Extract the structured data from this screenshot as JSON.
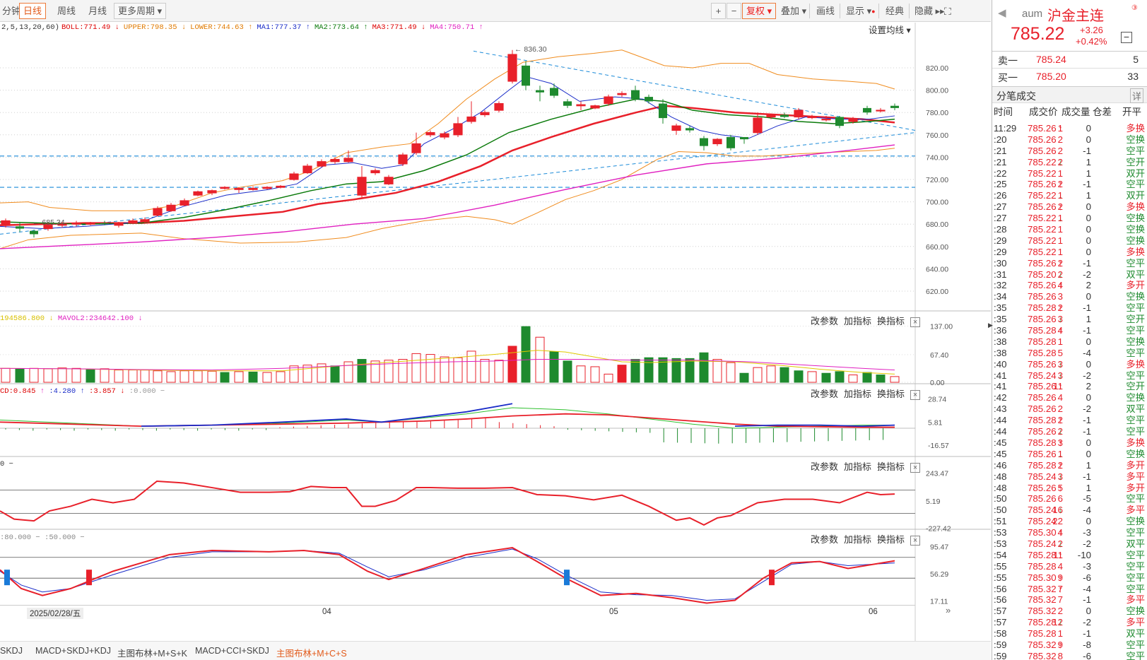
{
  "toolbar": {
    "items": [
      "分钟",
      "日线",
      "周线",
      "月线",
      "更多周期",
      "复权",
      "叠加",
      "画线",
      "显示",
      "经典",
      "隐藏"
    ],
    "plus": "+",
    "minus": "−"
  },
  "overlay": {
    "params": "2,5,13,20,60)",
    "indicators": [
      {
        "text": "BOLL:771.49",
        "arrow": "↓",
        "color": "#d00"
      },
      {
        "text": "UPPER:798.35",
        "arrow": "↓",
        "color": "#e07a00"
      },
      {
        "text": "LOWER:744.63",
        "arrow": "↑",
        "color": "#e07a00"
      },
      {
        "text": "MA1:777.37",
        "arrow": "↑",
        "color": "#1a2cc8"
      },
      {
        "text": "MA2:773.64",
        "arrow": "↑",
        "color": "#0a7a0a"
      },
      {
        "text": "MA3:771.49",
        "arrow": "↓",
        "color": "#d00"
      },
      {
        "text": "MA4:750.71",
        "arrow": "↑",
        "color": "#e020c0"
      }
    ],
    "settings": "设置均线",
    "peak_label": "836.30",
    "low_label": "685.34"
  },
  "main_axis": [
    "820.00",
    "800.00",
    "780.00",
    "760.00",
    "740.00",
    "720.00",
    "700.00",
    "680.00",
    "660.00",
    "640.00",
    "620.00"
  ],
  "vol": {
    "label1": "194586.800",
    "label2": "MAVOL2:234642.100",
    "axis": [
      "137.00",
      "67.40",
      "0.00"
    ]
  },
  "macd": {
    "l1": "CD:0.845",
    "l2": ":4.280",
    ":l3": "",
    "l3": ":3.857",
    "l4": ":0.000",
    "axis": [
      "28.74",
      "5.81",
      "-16.57"
    ]
  },
  "cci": {
    "l1": "0",
    "axis": [
      "243.47",
      "5.19",
      "-227.42"
    ]
  },
  "kdj": {
    "l1": ":80.000",
    ":l2": "",
    "l2": ":50.000",
    "axis": [
      "95.47",
      "56.29",
      "17.11"
    ]
  },
  "panel_buttons": [
    "改参数",
    "加指标",
    "换指标"
  ],
  "xaxis": {
    "dates": [
      "2025/02/28/五",
      "04",
      "05",
      "06"
    ]
  },
  "bottom_tabs": [
    "SKDJ",
    "MACD+SKDJ+KDJ",
    "主图布林+M+S+K",
    "MACD+CCI+SKDJ",
    "主图布林+M+C+S"
  ],
  "quote": {
    "code": "aum",
    "name": "沪金主连",
    "price": "785.22",
    "change": "+3.26",
    "pct": "+0.42%",
    "sell_label": "卖一",
    "sell_price": "785.24",
    "sell_vol": "5",
    "buy_label": "买一",
    "buy_price": "785.20",
    "buy_vol": "33",
    "trades_title": "分笔成交",
    "detail": "详",
    "headers": [
      "时间",
      "成交价",
      "成交量",
      "仓差",
      "开平"
    ]
  },
  "trades": [
    [
      "11:29",
      "785.26",
      "↑",
      "1",
      "0",
      "多换"
    ],
    [
      ":20",
      "785.26",
      "",
      "2",
      "0",
      "空换"
    ],
    [
      ":21",
      "785.26",
      "",
      "2",
      "-1",
      "空平"
    ],
    [
      ":21",
      "785.22",
      "↓",
      "2",
      "1",
      "空开"
    ],
    [
      ":22",
      "785.22",
      "",
      "1",
      "1",
      "双开"
    ],
    [
      ":25",
      "785.26",
      "↑",
      "2",
      "-1",
      "空平"
    ],
    [
      ":26",
      "785.22",
      "↓",
      "1",
      "1",
      "双开"
    ],
    [
      ":27",
      "785.26",
      "↑",
      "2",
      "0",
      "多换"
    ],
    [
      ":27",
      "785.22",
      "↓",
      "1",
      "0",
      "空换"
    ],
    [
      ":28",
      "785.22",
      "",
      "1",
      "0",
      "空换"
    ],
    [
      ":29",
      "785.22",
      "",
      "1",
      "0",
      "空换"
    ],
    [
      ":29",
      "785.22",
      "",
      "1",
      "0",
      "多换"
    ],
    [
      ":30",
      "785.26",
      "↑",
      "2",
      "-1",
      "空平"
    ],
    [
      ":31",
      "785.20",
      "↓",
      "2",
      "-2",
      "双平"
    ],
    [
      ":32",
      "785.26",
      "↑",
      "4",
      "2",
      "多开"
    ],
    [
      ":34",
      "785.26",
      "",
      "3",
      "0",
      "空换"
    ],
    [
      ":35",
      "785.28",
      "↑",
      "2",
      "-1",
      "空平"
    ],
    [
      ":35",
      "785.26",
      "↓",
      "3",
      "1",
      "空开"
    ],
    [
      ":36",
      "785.28",
      "↑",
      "4",
      "-1",
      "空平"
    ],
    [
      ":38",
      "785.28",
      "",
      "1",
      "0",
      "空换"
    ],
    [
      ":38",
      "785.28",
      "",
      "5",
      "-4",
      "空平"
    ],
    [
      ":40",
      "785.26",
      "↓",
      "3",
      "0",
      "多换"
    ],
    [
      ":41",
      "785.24",
      "↓",
      "3",
      "-2",
      "空平"
    ],
    [
      ":41",
      "785.26",
      "↑",
      "11",
      "2",
      "空开"
    ],
    [
      ":42",
      "785.26",
      "",
      "4",
      "0",
      "空换"
    ],
    [
      ":43",
      "785.26",
      "",
      "2",
      "-2",
      "双平"
    ],
    [
      ":44",
      "785.28",
      "↑",
      "2",
      "-1",
      "空平"
    ],
    [
      ":44",
      "785.26",
      "↓",
      "2",
      "-1",
      "空平"
    ],
    [
      ":45",
      "785.28",
      "↑",
      "3",
      "0",
      "多换"
    ],
    [
      ":45",
      "785.26",
      "↓",
      "1",
      "0",
      "空换"
    ],
    [
      ":46",
      "785.28",
      "↑",
      "2",
      "1",
      "多开"
    ],
    [
      ":48",
      "785.24",
      "↓",
      "3",
      "-1",
      "多平"
    ],
    [
      ":48",
      "785.26",
      "↑",
      "5",
      "1",
      "多开"
    ],
    [
      ":50",
      "785.26",
      "",
      "6",
      "-5",
      "空平"
    ],
    [
      ":50",
      "785.24",
      "↓",
      "16",
      "-4",
      "多平"
    ],
    [
      ":51",
      "785.24",
      "",
      "22",
      "0",
      "空换"
    ],
    [
      ":53",
      "785.30",
      "↑",
      "4",
      "-3",
      "空平"
    ],
    [
      ":53",
      "785.24",
      "↓",
      "2",
      "-2",
      "双平"
    ],
    [
      ":54",
      "785.28",
      "↑",
      "11",
      "-10",
      "空平"
    ],
    [
      ":55",
      "785.28",
      "",
      "4",
      "-3",
      "空平"
    ],
    [
      ":55",
      "785.30",
      "↑",
      "9",
      "-6",
      "空平"
    ],
    [
      ":56",
      "785.32",
      "↑",
      "7",
      "-4",
      "空平"
    ],
    [
      ":56",
      "785.32",
      "",
      "7",
      "-1",
      "多平"
    ],
    [
      ":57",
      "785.32",
      "",
      "2",
      "0",
      "空换"
    ],
    [
      ":57",
      "785.28",
      "↓",
      "12",
      "-2",
      "多平"
    ],
    [
      ":58",
      "785.28",
      "",
      "1",
      "-1",
      "双平"
    ],
    [
      ":59",
      "785.32",
      "↑",
      "9",
      "-8",
      "空平"
    ],
    [
      ":59",
      "785.32",
      "",
      "8",
      "-6",
      "空平"
    ]
  ],
  "colors": {
    "up": "#e8202a",
    "down": "#1e8a2e",
    "ma1": "#1a2cc8",
    "ma2": "#0a7a0a",
    "boll": "#e8202a",
    "band": "#f08c1e",
    "ma4": "#e020c0",
    "dash": "#1a8ad8"
  }
}
